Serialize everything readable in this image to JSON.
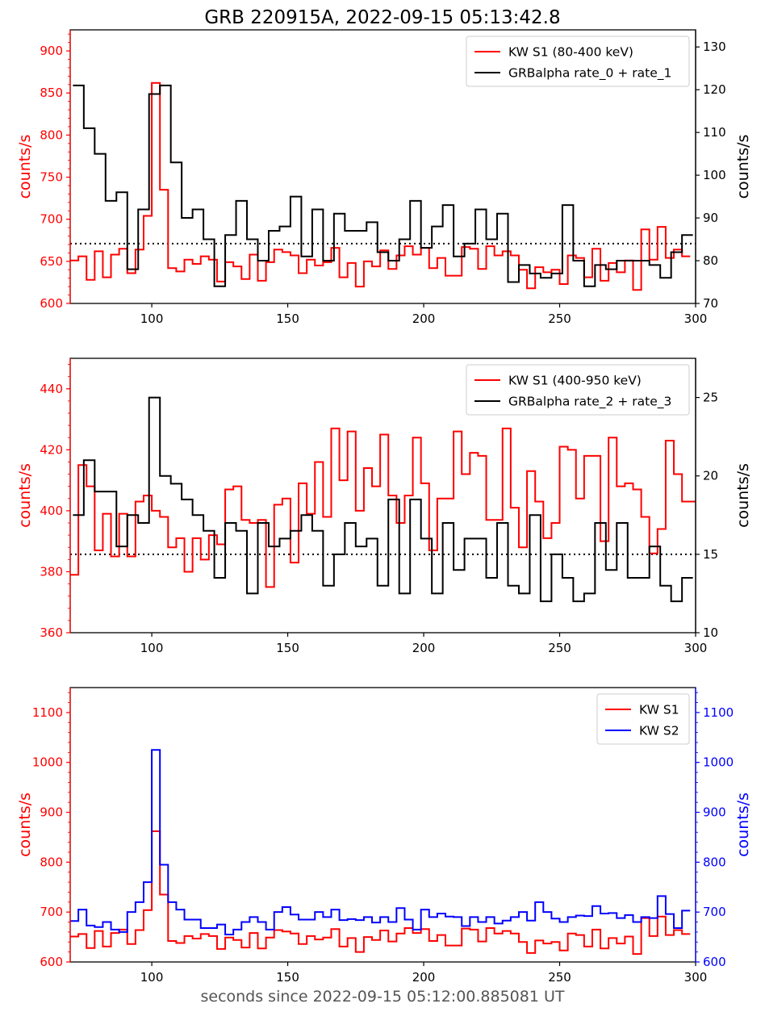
{
  "title": "GRB 220915A, 2022-09-15 05:13:42.8",
  "xlabel": "seconds since 2022-09-15 05:12:00.885081 UT",
  "colors": {
    "red": "#ff0000",
    "black": "#000000",
    "blue": "#0000ff"
  },
  "chart_data": [
    {
      "type": "line",
      "step": true,
      "xlim": [
        70,
        300
      ],
      "xticks": [
        100,
        150,
        200,
        250,
        300
      ],
      "ylim_left": [
        600,
        925
      ],
      "yticks_left": [
        600,
        650,
        700,
        750,
        800,
        850,
        900
      ],
      "ylabel_left": "counts/s",
      "ylim_right": [
        70,
        134
      ],
      "yticks_right": [
        70,
        80,
        90,
        100,
        110,
        120,
        130
      ],
      "ylabel_right": "counts/s",
      "legend": "top-right",
      "hline": {
        "axis": "right",
        "value": 84
      },
      "series": [
        {
          "name": "KW S1 (80-400 keV)",
          "axis": "left",
          "color": "red",
          "x": [
            70,
            73,
            76,
            79,
            82,
            85,
            88,
            91,
            94,
            97,
            100,
            103,
            106,
            109,
            112,
            115,
            118,
            121,
            124,
            127,
            130,
            133,
            136,
            139,
            142,
            145,
            148,
            151,
            154,
            157,
            160,
            163,
            166,
            169,
            172,
            175,
            178,
            181,
            184,
            187,
            190,
            193,
            196,
            199,
            202,
            205,
            208,
            211,
            214,
            217,
            220,
            223,
            226,
            229,
            232,
            235,
            238,
            241,
            244,
            247,
            250,
            253,
            256,
            259,
            262,
            265,
            268,
            271,
            274,
            277,
            280,
            283,
            286,
            289,
            292,
            295
          ],
          "values": [
            651,
            656,
            628,
            662,
            631,
            658,
            665,
            636,
            664,
            704,
            862,
            735,
            642,
            638,
            652,
            647,
            656,
            652,
            626,
            649,
            644,
            629,
            658,
            627,
            649,
            664,
            661,
            657,
            636,
            652,
            645,
            649,
            666,
            631,
            648,
            620,
            650,
            644,
            663,
            641,
            657,
            668,
            658,
            666,
            642,
            654,
            633,
            633,
            667,
            665,
            641,
            668,
            657,
            662,
            657,
            640,
            618,
            643,
            637,
            640,
            623,
            657,
            654,
            631,
            665,
            627,
            648,
            637,
            651,
            616,
            688,
            652,
            691,
            654,
            664,
            656
          ]
        },
        {
          "name": "GRBalpha rate_0 + rate_1",
          "axis": "right",
          "color": "black",
          "x": [
            71,
            75,
            79,
            83,
            87,
            91,
            95,
            99,
            103,
            107,
            111,
            115,
            119,
            123,
            127,
            131,
            135,
            139,
            143,
            147,
            151,
            155,
            159,
            163,
            167,
            171,
            175,
            179,
            183,
            187,
            191,
            195,
            199,
            203,
            207,
            211,
            215,
            219,
            223,
            227,
            231,
            235,
            239,
            243,
            247,
            251,
            255,
            259,
            263,
            267,
            271,
            275,
            279,
            283,
            287,
            291,
            295
          ],
          "values": [
            121,
            111,
            105,
            94,
            96,
            78,
            92,
            119,
            121,
            103,
            90,
            92,
            85,
            74,
            86,
            94,
            85,
            80,
            87,
            88,
            95,
            81,
            92,
            80,
            91,
            87,
            87,
            89,
            82,
            80,
            85,
            94,
            83,
            88,
            93,
            81,
            84,
            92,
            85,
            91,
            75,
            79,
            77,
            76,
            77,
            93,
            80,
            74,
            79,
            78,
            80,
            80,
            80,
            79,
            76,
            82,
            86
          ]
        }
      ]
    },
    {
      "type": "line",
      "step": true,
      "xlim": [
        70,
        300
      ],
      "xticks": [
        100,
        150,
        200,
        250,
        300
      ],
      "ylim_left": [
        360,
        450
      ],
      "yticks_left": [
        360,
        380,
        400,
        420,
        440
      ],
      "ylabel_left": "counts/s",
      "ylim_right": [
        10,
        27.5
      ],
      "yticks_right": [
        10,
        15,
        20,
        25
      ],
      "ylabel_right": "counts/s",
      "legend": "top-right",
      "hline": {
        "axis": "right",
        "value": 15
      },
      "series": [
        {
          "name": "KW S1 (400-950 keV)",
          "axis": "left",
          "color": "red",
          "x": [
            70,
            73,
            76,
            79,
            82,
            85,
            88,
            91,
            94,
            97,
            100,
            103,
            106,
            109,
            112,
            115,
            118,
            121,
            124,
            127,
            130,
            133,
            136,
            139,
            142,
            145,
            148,
            151,
            154,
            157,
            160,
            163,
            166,
            169,
            172,
            175,
            178,
            181,
            184,
            187,
            190,
            193,
            196,
            199,
            202,
            205,
            208,
            211,
            214,
            217,
            220,
            223,
            226,
            229,
            232,
            235,
            238,
            241,
            244,
            247,
            250,
            253,
            256,
            259,
            262,
            265,
            268,
            271,
            274,
            277,
            280,
            283,
            286,
            289,
            292,
            295,
            298
          ],
          "values": [
            379,
            415,
            408,
            387,
            399,
            385,
            399,
            385,
            403,
            405,
            400,
            398,
            388,
            391,
            380,
            391,
            384,
            392,
            389,
            407,
            408,
            397,
            396,
            397,
            375,
            402,
            404,
            383,
            409,
            399,
            416,
            398,
            427,
            410,
            426,
            400,
            414,
            408,
            425,
            405,
            396,
            405,
            424,
            409,
            387,
            404,
            404,
            426,
            412,
            419,
            418,
            397,
            397,
            427,
            401,
            388,
            413,
            403,
            391,
            396,
            421,
            420,
            404,
            418,
            418,
            390,
            424,
            408,
            409,
            407,
            398,
            386,
            394,
            423,
            412,
            403,
            403
          ]
        },
        {
          "name": "GRBalpha rate_2 + rate_3",
          "axis": "right",
          "color": "black",
          "x": [
            71,
            75,
            79,
            83,
            87,
            91,
            95,
            99,
            103,
            107,
            111,
            115,
            119,
            123,
            127,
            131,
            135,
            139,
            143,
            147,
            151,
            155,
            159,
            163,
            167,
            171,
            175,
            179,
            183,
            187,
            191,
            195,
            199,
            203,
            207,
            211,
            215,
            219,
            223,
            227,
            231,
            235,
            239,
            243,
            247,
            251,
            255,
            259,
            263,
            267,
            271,
            275,
            279,
            283,
            287,
            291,
            295
          ],
          "values": [
            17.5,
            21,
            19,
            19,
            15.5,
            17.5,
            17,
            25,
            20,
            19.5,
            18.5,
            17.5,
            16.5,
            13.5,
            17,
            16.5,
            12.5,
            17,
            15.5,
            16,
            16.5,
            17.5,
            16.5,
            13,
            15,
            17,
            15.5,
            16,
            13,
            18.5,
            12.5,
            18.5,
            16,
            12.5,
            17,
            14,
            16,
            16,
            13.5,
            17,
            13,
            12.5,
            17.5,
            12,
            15,
            13.5,
            12,
            12.5,
            17,
            14,
            17,
            13.5,
            13.5,
            15.5,
            13,
            12,
            13.5
          ]
        }
      ]
    },
    {
      "type": "line",
      "step": true,
      "xlim": [
        70,
        300
      ],
      "xticks": [
        100,
        150,
        200,
        250,
        300
      ],
      "ylim_left": [
        600,
        1150
      ],
      "yticks_left": [
        600,
        700,
        800,
        900,
        1000,
        1100
      ],
      "ylabel_left": "counts/s",
      "ylim_right": [
        600,
        1150
      ],
      "yticks_right": [
        600,
        700,
        800,
        900,
        1000,
        1100
      ],
      "ylabel_right": "counts/s",
      "legend": "top-right",
      "series": [
        {
          "name": "KW S1",
          "axis": "left",
          "color": "red",
          "x": [
            70,
            73,
            76,
            79,
            82,
            85,
            88,
            91,
            94,
            97,
            100,
            103,
            106,
            109,
            112,
            115,
            118,
            121,
            124,
            127,
            130,
            133,
            136,
            139,
            142,
            145,
            148,
            151,
            154,
            157,
            160,
            163,
            166,
            169,
            172,
            175,
            178,
            181,
            184,
            187,
            190,
            193,
            196,
            199,
            202,
            205,
            208,
            211,
            214,
            217,
            220,
            223,
            226,
            229,
            232,
            235,
            238,
            241,
            244,
            247,
            250,
            253,
            256,
            259,
            262,
            265,
            268,
            271,
            274,
            277,
            280,
            283,
            286,
            289,
            292,
            295
          ],
          "values": [
            651,
            656,
            628,
            662,
            631,
            658,
            665,
            636,
            664,
            704,
            862,
            735,
            642,
            638,
            652,
            647,
            656,
            652,
            626,
            649,
            644,
            629,
            658,
            627,
            649,
            664,
            661,
            657,
            636,
            652,
            645,
            649,
            666,
            631,
            648,
            620,
            650,
            644,
            663,
            641,
            657,
            668,
            658,
            666,
            642,
            654,
            633,
            633,
            667,
            665,
            641,
            668,
            657,
            662,
            657,
            640,
            618,
            643,
            637,
            640,
            623,
            657,
            654,
            631,
            665,
            627,
            648,
            637,
            651,
            616,
            688,
            652,
            691,
            654,
            664,
            656
          ]
        },
        {
          "name": "KW S2",
          "axis": "right",
          "color": "blue",
          "x": [
            70,
            73,
            76,
            79,
            82,
            85,
            88,
            91,
            94,
            97,
            100,
            103,
            106,
            109,
            112,
            115,
            118,
            121,
            124,
            127,
            130,
            133,
            136,
            139,
            142,
            145,
            148,
            151,
            154,
            157,
            160,
            163,
            166,
            169,
            172,
            175,
            178,
            181,
            184,
            187,
            190,
            193,
            196,
            199,
            202,
            205,
            208,
            211,
            214,
            217,
            220,
            223,
            226,
            229,
            232,
            235,
            238,
            241,
            244,
            247,
            250,
            253,
            256,
            259,
            262,
            265,
            268,
            271,
            274,
            277,
            280,
            283,
            286,
            289,
            292,
            295
          ],
          "values": [
            682,
            705,
            673,
            670,
            680,
            665,
            660,
            700,
            720,
            760,
            1025,
            795,
            720,
            705,
            685,
            685,
            668,
            668,
            675,
            655,
            665,
            680,
            690,
            680,
            665,
            700,
            710,
            695,
            685,
            685,
            700,
            690,
            705,
            684,
            686,
            684,
            690,
            679,
            690,
            680,
            708,
            685,
            665,
            705,
            690,
            697,
            691,
            690,
            672,
            690,
            680,
            690,
            677,
            683,
            690,
            700,
            683,
            720,
            700,
            687,
            680,
            690,
            693,
            692,
            712,
            697,
            698,
            688,
            694,
            680,
            690,
            688,
            732,
            696,
            668,
            703
          ]
        }
      ]
    }
  ]
}
